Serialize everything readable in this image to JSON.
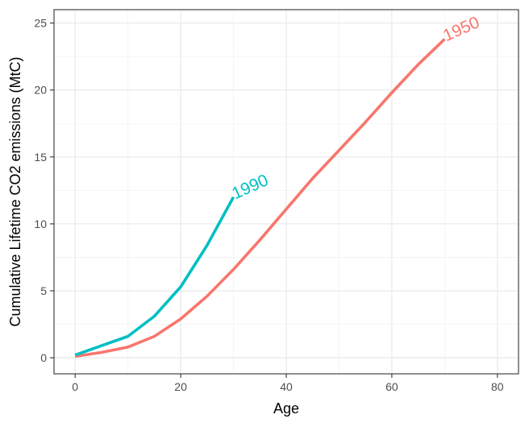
{
  "chart_data": {
    "type": "line",
    "title": "",
    "xlabel": "Age",
    "ylabel": "Cumulative Lifetime CO2 emissions (MtC)",
    "xlim": [
      -4,
      84
    ],
    "ylim": [
      -1.2,
      26
    ],
    "x_ticks": [
      0,
      20,
      40,
      60,
      80
    ],
    "y_ticks": [
      0,
      5,
      10,
      15,
      20,
      25
    ],
    "grid": true,
    "legend": "none (series labelled directly at line ends)",
    "series": [
      {
        "name": "1950",
        "color": "#F8766D",
        "x": [
          0,
          5,
          10,
          15,
          20,
          25,
          30,
          35,
          40,
          45,
          50,
          55,
          60,
          65,
          70
        ],
        "y": [
          0.1,
          0.4,
          0.8,
          1.6,
          2.9,
          4.6,
          6.6,
          8.8,
          11.1,
          13.4,
          15.5,
          17.6,
          19.8,
          21.9,
          23.8
        ]
      },
      {
        "name": "1990",
        "color": "#00BFC4",
        "x": [
          0,
          5,
          10,
          15,
          20,
          25,
          30
        ],
        "y": [
          0.2,
          0.9,
          1.6,
          3.1,
          5.3,
          8.4,
          12.0
        ]
      }
    ]
  }
}
